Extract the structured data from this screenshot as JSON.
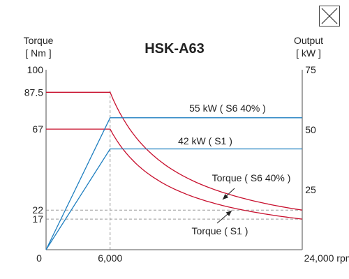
{
  "close_icon": "close-icon",
  "colors": {
    "torque": "#c8102e",
    "output": "#1f7fc0",
    "axis": "#777777",
    "grid": "#999999"
  },
  "chart_data": {
    "type": "line",
    "title": "HSK-A63",
    "ylabel_left": [
      "Torque",
      "[ Nm ]"
    ],
    "ylabel_right": [
      "Output",
      "[ kW ]"
    ],
    "xlim": [
      0,
      24000
    ],
    "ylim_left": [
      0,
      100
    ],
    "ylim_right": [
      0,
      75
    ],
    "x_ticks": [
      {
        "value": 0,
        "label": "0"
      },
      {
        "value": 6000,
        "label": "6,000"
      },
      {
        "value": 24000,
        "label": "24,000 rpm"
      }
    ],
    "left_ticks": [
      {
        "value": 100,
        "label": "100"
      },
      {
        "value": 87.5,
        "label": "87.5"
      },
      {
        "value": 67,
        "label": "67"
      },
      {
        "value": 22,
        "label": "22"
      },
      {
        "value": 17,
        "label": "17"
      }
    ],
    "right_ticks": [
      {
        "value": 75,
        "label": "75"
      },
      {
        "value": 50,
        "label": "50"
      },
      {
        "value": 25,
        "label": "25"
      }
    ],
    "reference_lines": [
      {
        "axis": "x",
        "value": 6000
      },
      {
        "axis": "left",
        "value": 22
      },
      {
        "axis": "left",
        "value": 17
      }
    ],
    "series": [
      {
        "name": "Torque ( S6 40% )",
        "axis": "left",
        "kind": "torque",
        "x": [
          0,
          6000,
          9000,
          12000,
          15000,
          18000,
          21000,
          24000
        ],
        "y": [
          87.5,
          87.5,
          58.3,
          43.8,
          35.0,
          29.2,
          25.0,
          22.0
        ]
      },
      {
        "name": "Torque ( S1 )",
        "axis": "left",
        "kind": "torque",
        "x": [
          0,
          6000,
          9000,
          12000,
          15000,
          18000,
          21000,
          24000
        ],
        "y": [
          67,
          67,
          44.7,
          33.5,
          26.8,
          22.3,
          19.1,
          17.0
        ]
      },
      {
        "name": "55 kW ( S6 40% )",
        "axis": "right",
        "kind": "output",
        "x": [
          0,
          6000,
          24000
        ],
        "y": [
          0,
          55,
          55
        ]
      },
      {
        "name": "42 kW ( S1 )",
        "axis": "right",
        "kind": "output",
        "x": [
          0,
          6000,
          24000
        ],
        "y": [
          0,
          42,
          42
        ]
      }
    ]
  }
}
